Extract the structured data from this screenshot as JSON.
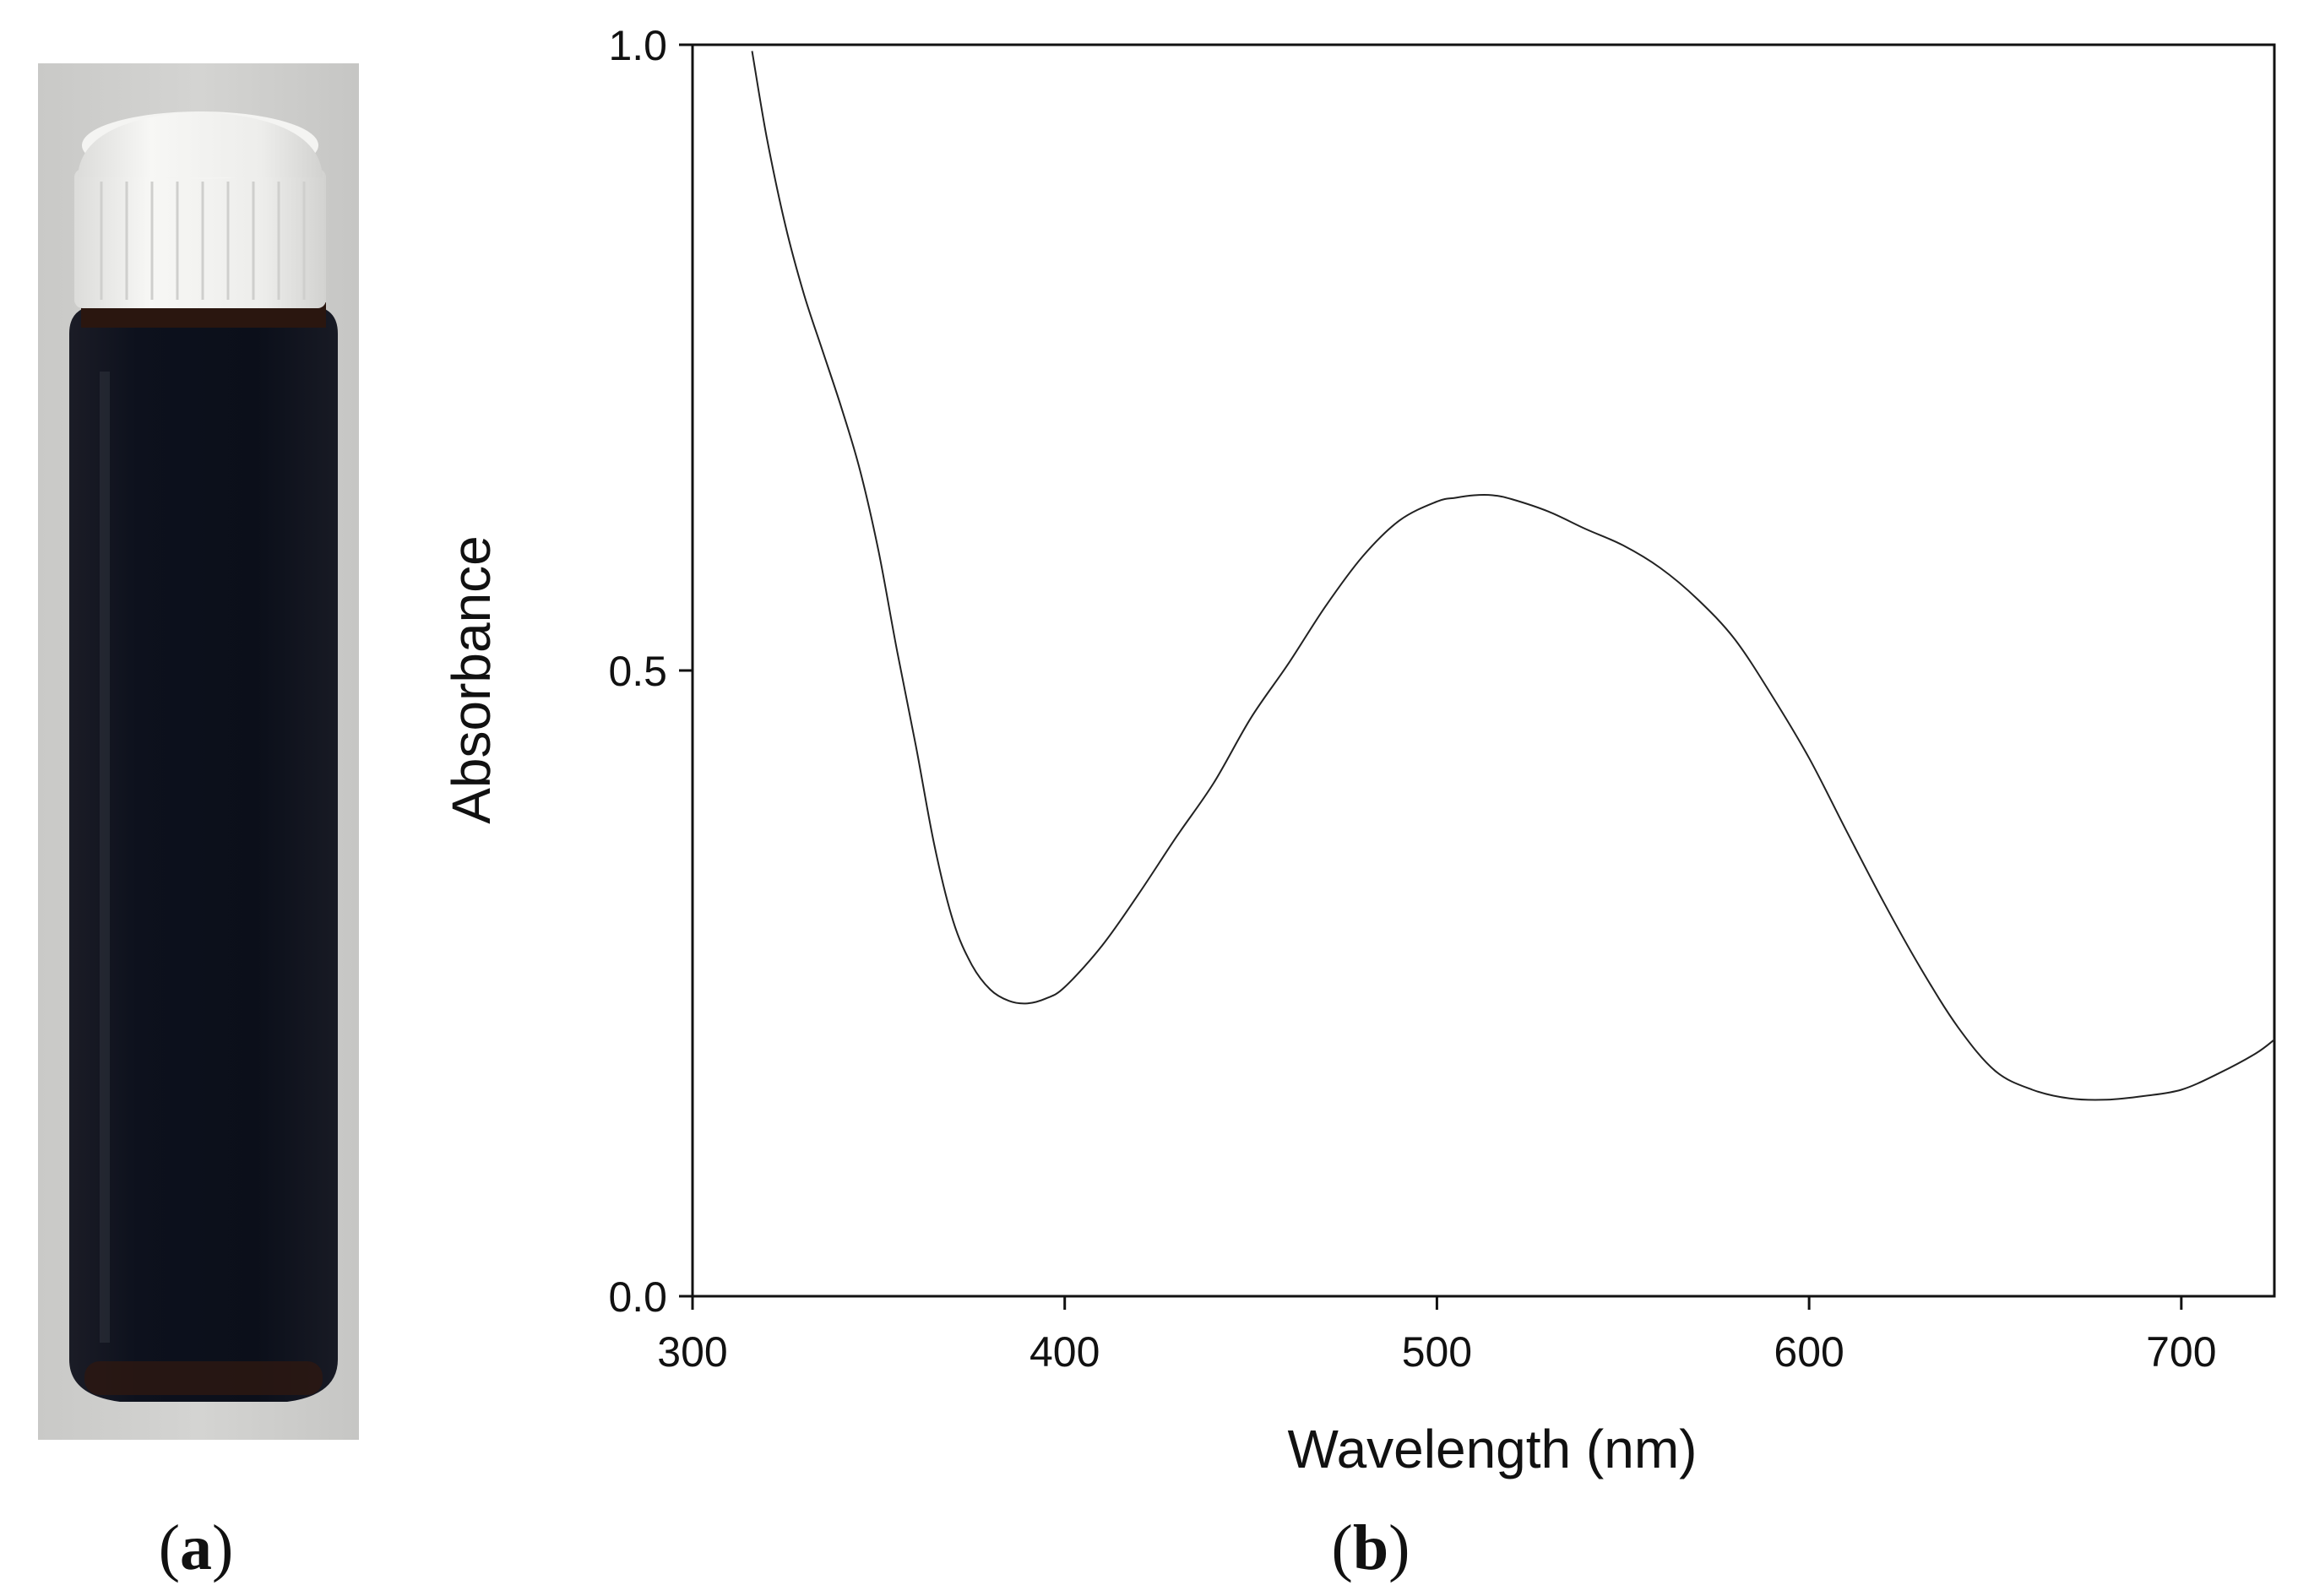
{
  "panels": {
    "a": {
      "label_open": "(",
      "label_letter": "a",
      "label_close": ")"
    },
    "b": {
      "label_open": "(",
      "label_letter": "b",
      "label_close": ")"
    }
  },
  "photo": {
    "subject": "vial",
    "colors": {
      "background": "#d0d0ce",
      "cap": "#f2f2f0",
      "liquid": "#111623",
      "liquid_edge": "#3a1a10"
    }
  },
  "chart_data": {
    "type": "line",
    "title": "",
    "xlabel": "Wavelength (nm)",
    "ylabel": "Absorbance",
    "xlim": [
      300,
      725
    ],
    "ylim": [
      0.0,
      1.0
    ],
    "xticks": [
      300,
      400,
      500,
      600,
      700
    ],
    "yticks": [
      0.0,
      0.5,
      1.0
    ],
    "xtick_labels": [
      "300",
      "400",
      "500",
      "600",
      "700"
    ],
    "ytick_labels": [
      "0.0",
      "0.5",
      "1.0"
    ],
    "grid": false,
    "series": [
      {
        "name": "Absorbance",
        "color": "#222222",
        "x": [
          316,
          320,
          325,
          330,
          335,
          340,
          345,
          350,
          355,
          360,
          365,
          370,
          375,
          380,
          385,
          390,
          395,
          400,
          410,
          420,
          430,
          440,
          450,
          460,
          470,
          480,
          490,
          500,
          505,
          510,
          515,
          520,
          530,
          540,
          550,
          560,
          570,
          580,
          590,
          600,
          610,
          620,
          630,
          640,
          650,
          660,
          670,
          680,
          690,
          700,
          710,
          720,
          725
        ],
        "y": [
          0.995,
          0.925,
          0.855,
          0.8,
          0.755,
          0.71,
          0.66,
          0.595,
          0.515,
          0.44,
          0.36,
          0.3,
          0.265,
          0.245,
          0.236,
          0.234,
          0.238,
          0.247,
          0.28,
          0.322,
          0.367,
          0.41,
          0.462,
          0.505,
          0.551,
          0.591,
          0.62,
          0.635,
          0.638,
          0.64,
          0.64,
          0.637,
          0.627,
          0.613,
          0.6,
          0.582,
          0.557,
          0.525,
          0.48,
          0.43,
          0.372,
          0.315,
          0.262,
          0.215,
          0.18,
          0.165,
          0.158,
          0.157,
          0.16,
          0.165,
          0.178,
          0.194,
          0.205
        ]
      }
    ]
  }
}
